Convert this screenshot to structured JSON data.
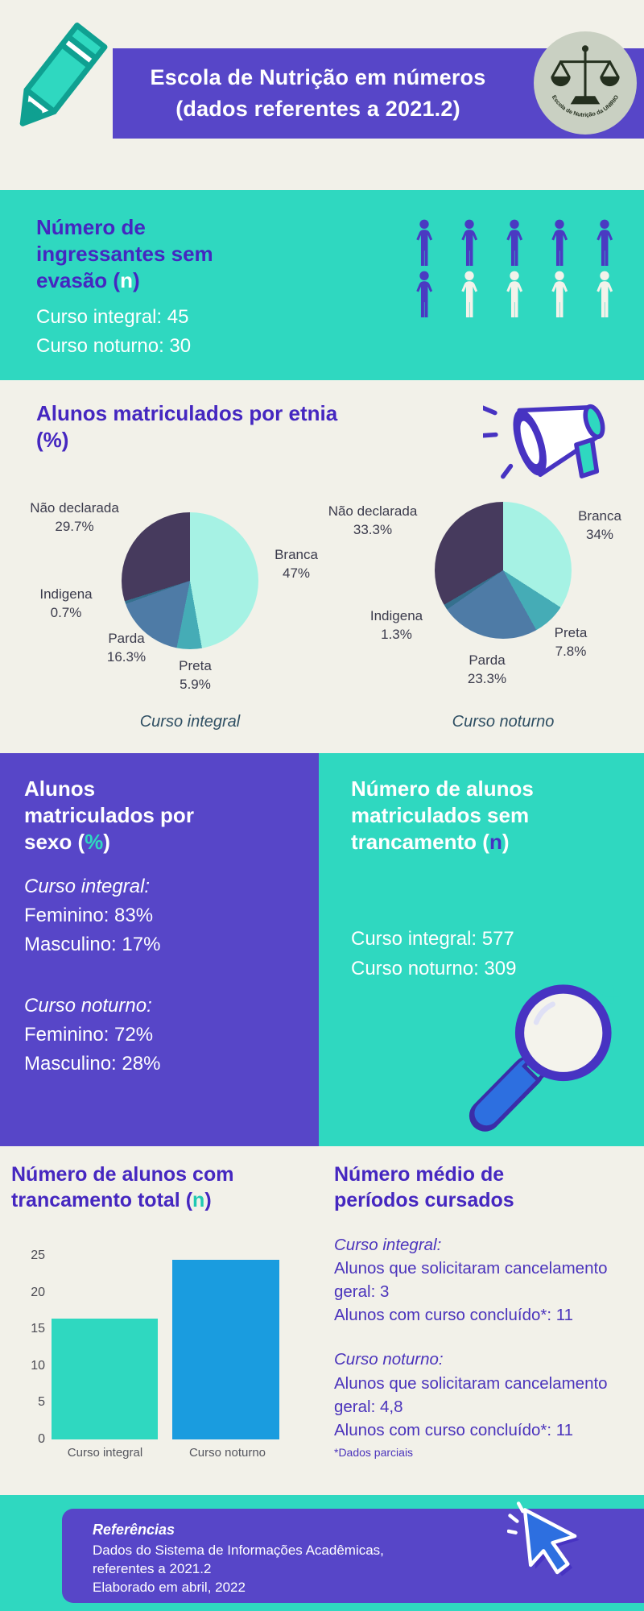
{
  "punct": {
    "open": "(",
    "close": ")"
  },
  "colors": {
    "background_cream": "#f2f1e9",
    "teal": "#2fd8c0",
    "purple": "#5746c8",
    "heading_purple": "#4527c0",
    "bar_blue": "#1a9cdf",
    "pie_branca": "#a6f2e4",
    "pie_preta": "#45acb6",
    "pie_parda": "#4e7ba6",
    "pie_indigena": "#35708e",
    "pie_nao_declarada": "#463a5d"
  },
  "icons": {
    "pencil": "pencil-icon",
    "logo": "school-logo-icon",
    "megaphone": "megaphone-icon",
    "magnifier": "magnifier-icon",
    "cursor": "cursor-icon",
    "person": "person-icon"
  },
  "header": {
    "title_line1": "Escola de Nutrição em números",
    "title_line2": "(dados referentes a 2021.2)",
    "logo_text": "Escola de Nutrição da UNIRIO"
  },
  "ingressantes": {
    "title": "Número de ingressantes sem evasão",
    "unit": "n",
    "lines": [
      "Curso integral: 45",
      "Curso noturno: 30"
    ],
    "people": {
      "total": 10,
      "highlighted": 6
    }
  },
  "etnia": {
    "title": "Alunos matriculados por etnia",
    "unit": "%"
  },
  "sexo": {
    "title": "Alunos matriculados por sexo",
    "unit": "%",
    "groups": [
      {
        "name": "Curso integral:",
        "lines": [
          "Feminino: 83%",
          "Masculino: 17%"
        ]
      },
      {
        "name": "Curso noturno:",
        "lines": [
          "Feminino: 72%",
          "Masculino: 28%"
        ]
      }
    ]
  },
  "sem_trancamento": {
    "title": "Número de alunos matriculados sem trancamento",
    "unit": "n",
    "lines": [
      "Curso integral: 577",
      "Curso noturno: 309"
    ]
  },
  "trancamento_total": {
    "title": "Número de alunos com trancamento total",
    "unit": "n"
  },
  "periodos": {
    "title": "Número médio de períodos cursados",
    "groups": [
      {
        "name": "Curso integral:",
        "lines": [
          "Alunos que solicitaram cancelamento geral: 3",
          "Alunos com curso concluído*: 11"
        ]
      },
      {
        "name": "Curso noturno:",
        "lines": [
          "Alunos que solicitaram cancelamento geral: 4,8",
          "Alunos com curso concluído*: 11"
        ]
      }
    ],
    "footnote": "*Dados parciais"
  },
  "footer": {
    "title": "Referências",
    "lines": [
      "Dados do Sistema de Informações Acadêmicas,",
      "referentes a 2021.2",
      "Elaborado em abril, 2022"
    ]
  },
  "chart_data": [
    {
      "type": "pie",
      "title": "Alunos matriculados por etnia (%)",
      "caption": "Curso integral",
      "labels": [
        "Branca",
        "Preta",
        "Parda",
        "Indigena",
        "Não declarada"
      ],
      "values": [
        47,
        5.9,
        16.3,
        0.7,
        29.7
      ],
      "colors": [
        "#a6f2e4",
        "#45acb6",
        "#4e7ba6",
        "#35708e",
        "#463a5d"
      ]
    },
    {
      "type": "pie",
      "title": "Alunos matriculados por etnia (%)",
      "caption": "Curso noturno",
      "labels": [
        "Branca",
        "Preta",
        "Parda",
        "Indigena",
        "Não declarada"
      ],
      "values": [
        34,
        7.8,
        23.3,
        1.3,
        33.3
      ],
      "colors": [
        "#a6f2e4",
        "#45acb6",
        "#4e7ba6",
        "#35708e",
        "#463a5d"
      ]
    },
    {
      "type": "bar",
      "title": "Número de alunos com trancamento total (n)",
      "categories": [
        "Curso integral",
        "Curso noturno"
      ],
      "values": [
        16.5,
        24.5
      ],
      "ylim": [
        0,
        25
      ],
      "yticks": [
        25,
        20,
        15,
        10,
        5,
        0
      ],
      "colors": [
        "#2fd8c0",
        "#1a9cdf"
      ],
      "grid": false,
      "legend": false
    }
  ]
}
